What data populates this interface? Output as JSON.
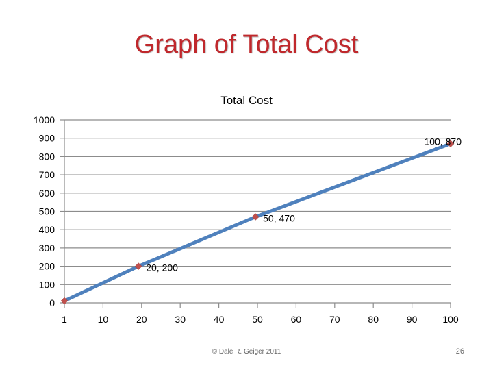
{
  "slide": {
    "title": "Graph of Total Cost",
    "footer": "© Dale R. Geiger 2011",
    "page_number": "26"
  },
  "chart_data": {
    "type": "line",
    "title": "Total Cost",
    "x_tick_labels": [
      "1",
      "10",
      "20",
      "30",
      "40",
      "50",
      "60",
      "70",
      "80",
      "90",
      "100"
    ],
    "y_ticks": [
      0,
      100,
      200,
      300,
      400,
      500,
      600,
      700,
      800,
      900,
      1000
    ],
    "ylim": [
      0,
      1000
    ],
    "grid": true,
    "series": [
      {
        "x": [
          1,
          20,
          50,
          100
        ],
        "y": [
          11,
          200,
          470,
          870
        ],
        "line_color": "#4f81bd",
        "marker_color": "#c0504d"
      }
    ],
    "data_labels": [
      {
        "x": 20,
        "y": 200,
        "text": "20, 200"
      },
      {
        "x": 50,
        "y": 470,
        "text": "50, 470"
      },
      {
        "x": 100,
        "y": 870,
        "text": "100, 870"
      }
    ]
  }
}
